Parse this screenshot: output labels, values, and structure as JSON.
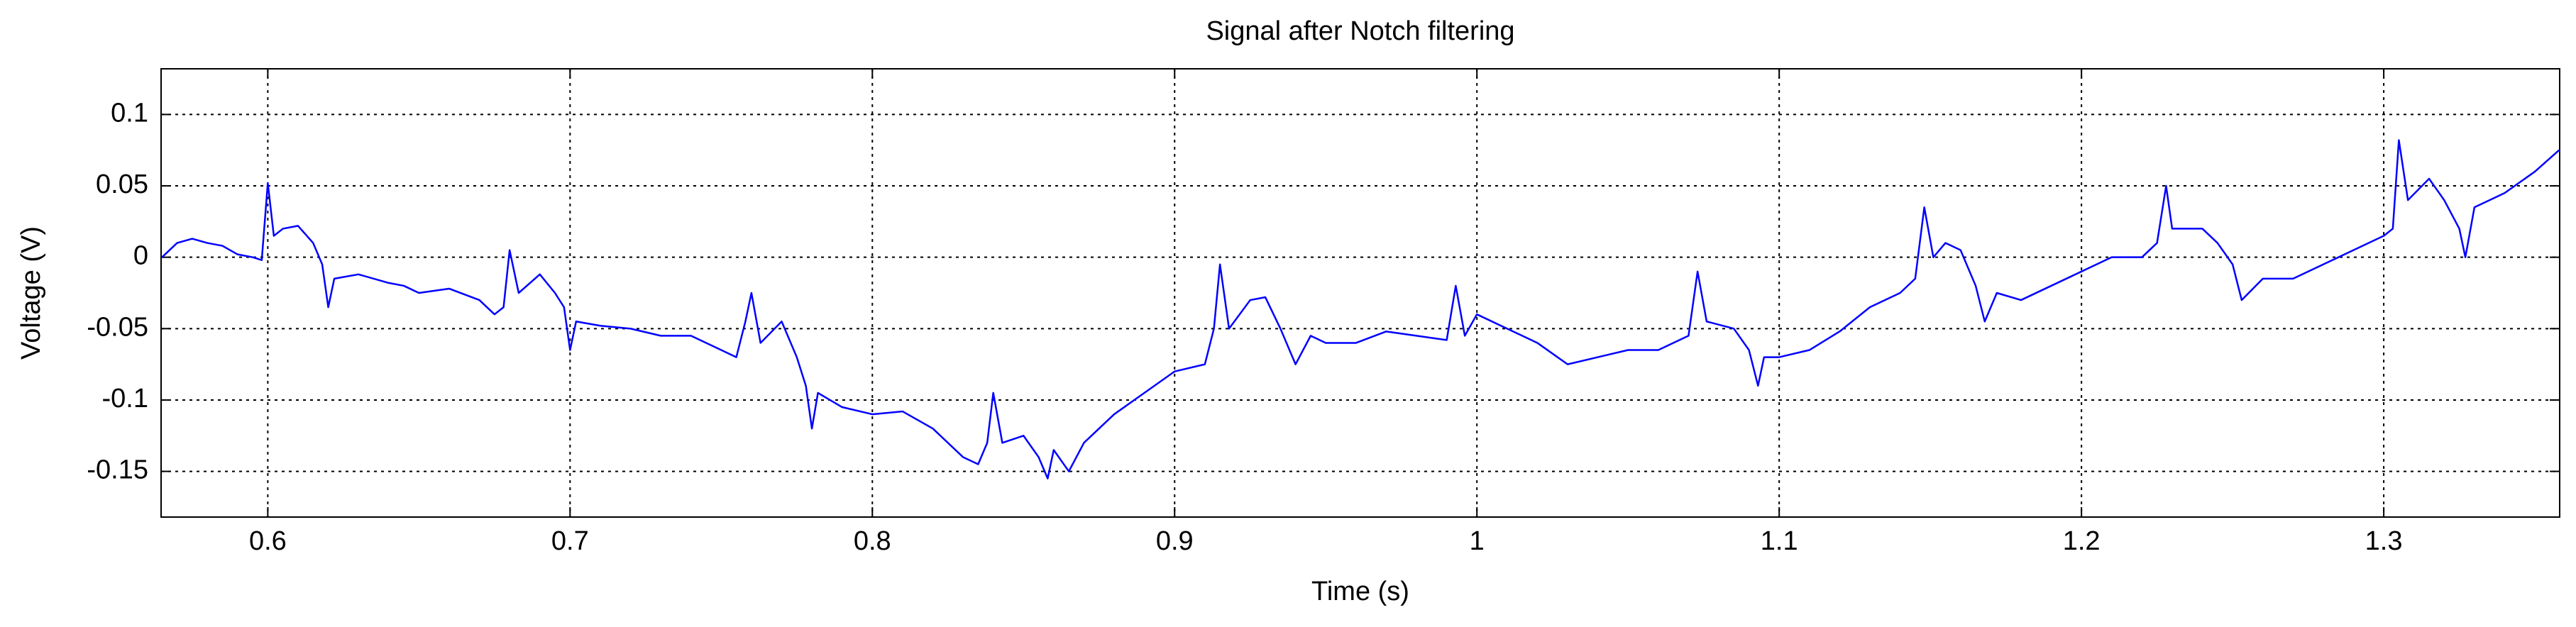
{
  "chart_data": {
    "type": "line",
    "title": "Signal after Notch filtering",
    "x_label": "Time (s)",
    "y_label": "Voltage (V)",
    "x": [
      0.565,
      0.57,
      0.575,
      0.58,
      0.585,
      0.59,
      0.595,
      0.598,
      0.6,
      0.602,
      0.605,
      0.61,
      0.615,
      0.618,
      0.62,
      0.622,
      0.63,
      0.64,
      0.645,
      0.65,
      0.66,
      0.67,
      0.675,
      0.678,
      0.68,
      0.683,
      0.69,
      0.695,
      0.698,
      0.7,
      0.702,
      0.71,
      0.72,
      0.73,
      0.74,
      0.75,
      0.755,
      0.758,
      0.76,
      0.763,
      0.77,
      0.775,
      0.778,
      0.78,
      0.782,
      0.79,
      0.8,
      0.81,
      0.82,
      0.83,
      0.835,
      0.838,
      0.84,
      0.843,
      0.85,
      0.855,
      0.858,
      0.86,
      0.865,
      0.87,
      0.88,
      0.89,
      0.9,
      0.91,
      0.913,
      0.915,
      0.918,
      0.925,
      0.93,
      0.935,
      0.94,
      0.945,
      0.95,
      0.96,
      0.97,
      0.98,
      0.99,
      0.993,
      0.996,
      1.0,
      1.01,
      1.02,
      1.03,
      1.04,
      1.05,
      1.06,
      1.07,
      1.073,
      1.076,
      1.085,
      1.09,
      1.093,
      1.095,
      1.1,
      1.11,
      1.12,
      1.13,
      1.14,
      1.145,
      1.148,
      1.151,
      1.155,
      1.16,
      1.165,
      1.168,
      1.172,
      1.18,
      1.19,
      1.2,
      1.21,
      1.22,
      1.225,
      1.228,
      1.23,
      1.24,
      1.245,
      1.25,
      1.253,
      1.26,
      1.27,
      1.28,
      1.29,
      1.3,
      1.303,
      1.305,
      1.308,
      1.315,
      1.32,
      1.325,
      1.327,
      1.33,
      1.34,
      1.35,
      1.358
    ],
    "values": [
      0.0,
      0.01,
      0.013,
      0.01,
      0.008,
      0.002,
      0.0,
      -0.002,
      0.052,
      0.015,
      0.02,
      0.022,
      0.01,
      -0.005,
      -0.035,
      -0.015,
      -0.012,
      -0.018,
      -0.02,
      -0.025,
      -0.022,
      -0.03,
      -0.04,
      -0.035,
      0.005,
      -0.025,
      -0.012,
      -0.025,
      -0.035,
      -0.065,
      -0.045,
      -0.048,
      -0.05,
      -0.055,
      -0.055,
      -0.065,
      -0.07,
      -0.045,
      -0.025,
      -0.06,
      -0.045,
      -0.07,
      -0.09,
      -0.12,
      -0.095,
      -0.105,
      -0.11,
      -0.108,
      -0.12,
      -0.14,
      -0.145,
      -0.13,
      -0.095,
      -0.13,
      -0.125,
      -0.14,
      -0.155,
      -0.135,
      -0.15,
      -0.13,
      -0.11,
      -0.095,
      -0.08,
      -0.075,
      -0.05,
      -0.005,
      -0.05,
      -0.03,
      -0.028,
      -0.05,
      -0.075,
      -0.055,
      -0.06,
      -0.06,
      -0.052,
      -0.055,
      -0.058,
      -0.02,
      -0.055,
      -0.04,
      -0.05,
      -0.06,
      -0.075,
      -0.07,
      -0.065,
      -0.065,
      -0.055,
      -0.01,
      -0.045,
      -0.05,
      -0.065,
      -0.09,
      -0.07,
      -0.07,
      -0.065,
      -0.052,
      -0.035,
      -0.025,
      -0.015,
      0.035,
      0.0,
      0.01,
      0.005,
      -0.02,
      -0.045,
      -0.025,
      -0.03,
      -0.02,
      -0.01,
      0.0,
      0.0,
      0.01,
      0.05,
      0.02,
      0.02,
      0.01,
      -0.005,
      -0.03,
      -0.015,
      -0.015,
      -0.005,
      0.005,
      0.015,
      0.02,
      0.082,
      0.04,
      0.055,
      0.04,
      0.02,
      0.0,
      0.035,
      0.045,
      0.06,
      0.075
    ],
    "color": "#0000ff",
    "xlim": [
      0.5647,
      1.3582
    ],
    "xticks": [
      0.6,
      0.7,
      0.8,
      0.9,
      1,
      1.1,
      1.2,
      1.3
    ],
    "ylim": [
      -0.182,
      0.132
    ],
    "yticks": [
      -0.15,
      -0.1,
      -0.05,
      0,
      0.05,
      0.1
    ],
    "grid": true
  }
}
